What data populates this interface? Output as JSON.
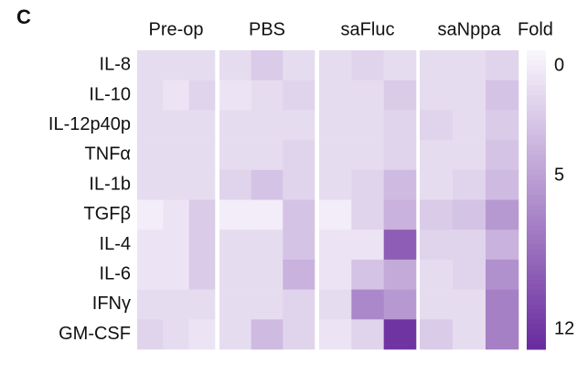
{
  "chart_data": {
    "type": "heatmap",
    "panel_label": "C",
    "rows": [
      "IL-8",
      "IL-10",
      "IL-12p40p",
      "TNFα",
      "IL-1b",
      "TGFβ",
      "IL-4",
      "IL-6",
      "IFNγ",
      "GM-CSF"
    ],
    "series": [
      {
        "name": "Pre-op",
        "values": [
          [
            1.5,
            1.5,
            1.5
          ],
          [
            1.5,
            1,
            2
          ],
          [
            1.5,
            1.5,
            1.5
          ],
          [
            1.5,
            1.5,
            1.5
          ],
          [
            1.5,
            1.5,
            1.5
          ],
          [
            0.5,
            1,
            2.5
          ],
          [
            1,
            1,
            2.5
          ],
          [
            1,
            1,
            2.5
          ],
          [
            1.5,
            1.5,
            1.5
          ],
          [
            2,
            1.5,
            1
          ]
        ]
      },
      {
        "name": "PBS",
        "values": [
          [
            1.5,
            2.5,
            1.5
          ],
          [
            1,
            1.5,
            2
          ],
          [
            1.5,
            1.5,
            1.5
          ],
          [
            1.5,
            1.5,
            2
          ],
          [
            2,
            3,
            2
          ],
          [
            0.5,
            0.5,
            3
          ],
          [
            1.5,
            1.5,
            3
          ],
          [
            1.5,
            1.5,
            4
          ],
          [
            1.5,
            1.5,
            2
          ],
          [
            1.5,
            3.5,
            2
          ]
        ]
      },
      {
        "name": "saFluc",
        "values": [
          [
            1.5,
            2,
            1.5
          ],
          [
            1.5,
            1.5,
            2.5
          ],
          [
            1.5,
            1.5,
            2
          ],
          [
            1.5,
            1.5,
            2
          ],
          [
            1.5,
            2,
            3.5
          ],
          [
            0.5,
            2,
            4
          ],
          [
            1,
            1,
            9
          ],
          [
            1,
            3,
            4.5
          ],
          [
            1.5,
            6.5,
            5.5
          ],
          [
            1,
            2,
            11.5
          ]
        ]
      },
      {
        "name": "saNppa",
        "values": [
          [
            1.5,
            1.5,
            2
          ],
          [
            1.5,
            1.5,
            3
          ],
          [
            2,
            1.5,
            2.5
          ],
          [
            1.5,
            1.5,
            3
          ],
          [
            1.5,
            2,
            3.5
          ],
          [
            2.5,
            3,
            5.5
          ],
          [
            2,
            2,
            4
          ],
          [
            1.5,
            2,
            6
          ],
          [
            1.5,
            1.5,
            7
          ],
          [
            2.5,
            1.5,
            7
          ]
        ]
      }
    ],
    "colorbar_title": "Fold",
    "zlim": [
      0,
      12
    ],
    "zticks": [
      0,
      5,
      12
    ],
    "colormap": [
      "#f8f5fc",
      "#6a2c9e"
    ]
  }
}
